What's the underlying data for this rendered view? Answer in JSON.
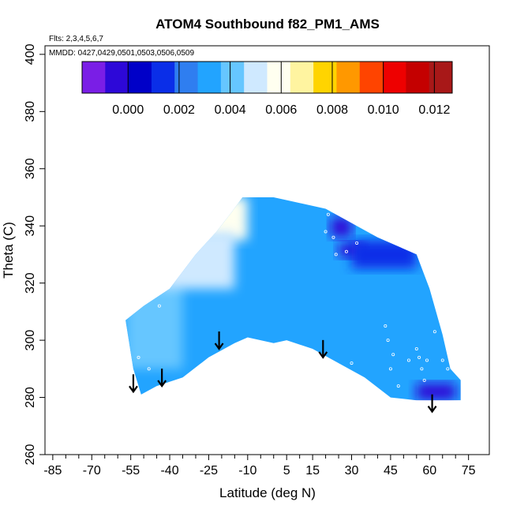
{
  "chart_data": {
    "type": "heatmap",
    "title": "ATOM4 Southbound f82_PM1_AMS",
    "subtitle_flights": "Flts: 2,3,4,5,6,7",
    "subtitle_dates": "MMDD: 0427,0429,0501,0503,0506,0509",
    "xlabel": "Latitude (deg N)",
    "ylabel": "Theta (C)",
    "xlim": [
      -88,
      83
    ],
    "ylim": [
      260,
      403
    ],
    "x_ticks": [
      -85,
      -70,
      -55,
      -40,
      -25,
      -10,
      5,
      15,
      30,
      45,
      60,
      75
    ],
    "y_ticks": [
      260,
      280,
      300,
      320,
      340,
      360,
      380,
      400
    ],
    "colorbar": {
      "range": [
        -0.0018,
        0.0127
      ],
      "tick_values": [
        0.0,
        0.002,
        0.004,
        0.006,
        0.008,
        0.01,
        0.012
      ],
      "tick_labels": [
        "0.000",
        "0.002",
        "0.004",
        "0.006",
        "0.008",
        "0.010",
        "0.012"
      ],
      "colors": [
        "#7a1ee6",
        "#2d08d8",
        "#0000c8",
        "#0a2ee8",
        "#2f7ef0",
        "#22a4ff",
        "#66c6ff",
        "#cfe9ff",
        "#fffff0",
        "#fff4a0",
        "#ffd400",
        "#ff9800",
        "#ff4400",
        "#ee0000",
        "#c40000",
        "#a81818"
      ]
    },
    "data_envelope": {
      "upper": [
        [
          -57,
          307
        ],
        [
          -50,
          312
        ],
        [
          -40,
          318
        ],
        [
          -30,
          330
        ],
        [
          -22,
          338
        ],
        [
          -16,
          345
        ],
        [
          -12,
          350
        ],
        [
          0,
          350
        ],
        [
          10,
          348
        ],
        [
          20,
          346
        ],
        [
          30,
          341
        ],
        [
          40,
          336
        ],
        [
          50,
          332
        ],
        [
          55,
          330
        ],
        [
          60,
          318
        ],
        [
          65,
          302
        ],
        [
          68,
          290
        ],
        [
          72,
          286
        ]
      ],
      "lower": [
        [
          -57,
          307
        ],
        [
          -54,
          290
        ],
        [
          -51,
          281
        ],
        [
          -45,
          284
        ],
        [
          -35,
          287
        ],
        [
          -25,
          294
        ],
        [
          -15,
          299
        ],
        [
          -10,
          301
        ],
        [
          0,
          299
        ],
        [
          5,
          300
        ],
        [
          15,
          297
        ],
        [
          25,
          292
        ],
        [
          35,
          287
        ],
        [
          45,
          280
        ],
        [
          55,
          279
        ],
        [
          72,
          279
        ]
      ]
    },
    "value_regions": [
      {
        "lat": [
          -57,
          72
        ],
        "theta": [
          279,
          350
        ],
        "value": 0.0028
      },
      {
        "lat": [
          -57,
          -35
        ],
        "theta": [
          290,
          320
        ],
        "value": 0.0045
      },
      {
        "lat": [
          -30,
          -10
        ],
        "theta": [
          335,
          350
        ],
        "value": 0.0062
      },
      {
        "lat": [
          -45,
          -15
        ],
        "theta": [
          318,
          338
        ],
        "value": 0.0048
      },
      {
        "lat": [
          22,
          30
        ],
        "theta": [
          336,
          343
        ],
        "value": -0.0002
      },
      {
        "lat": [
          25,
          35
        ],
        "theta": [
          329,
          334
        ],
        "value": -0.0004
      },
      {
        "lat": [
          55,
          70
        ],
        "theta": [
          279,
          285
        ],
        "value": -0.0003
      },
      {
        "lat": [
          30,
          55
        ],
        "theta": [
          325,
          335
        ],
        "value": 0.0012
      }
    ],
    "arrows": [
      {
        "lat": -54,
        "theta": 282
      },
      {
        "lat": -43,
        "theta": 284
      },
      {
        "lat": -21,
        "theta": 297
      },
      {
        "lat": 19,
        "theta": 294
      },
      {
        "lat": 61,
        "theta": 275
      }
    ],
    "sample_points": [
      [
        -44,
        312
      ],
      [
        -48,
        290
      ],
      [
        -52,
        294
      ],
      [
        20,
        338
      ],
      [
        21,
        344
      ],
      [
        23,
        336
      ],
      [
        24,
        330
      ],
      [
        28,
        331
      ],
      [
        32,
        334
      ],
      [
        43,
        305
      ],
      [
        44,
        300
      ],
      [
        46,
        295
      ],
      [
        48,
        284
      ],
      [
        55,
        297
      ],
      [
        56,
        294
      ],
      [
        57,
        290
      ],
      [
        58,
        286
      ],
      [
        59,
        293
      ],
      [
        62,
        303
      ],
      [
        65,
        293
      ],
      [
        67,
        290
      ],
      [
        30,
        292
      ],
      [
        45,
        290
      ],
      [
        52,
        293
      ]
    ]
  }
}
